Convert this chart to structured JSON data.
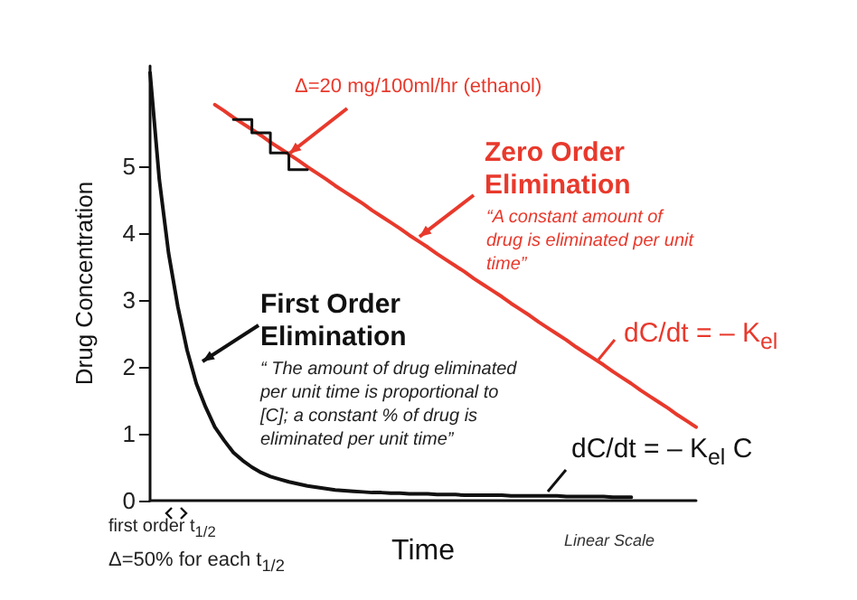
{
  "chart_data": {
    "type": "line",
    "xlabel": "Time",
    "ylabel": "Drug Concentration",
    "categories": [
      null,
      null,
      null,
      null,
      null,
      null,
      null,
      null,
      null,
      null,
      null,
      null,
      null,
      null,
      null,
      null,
      null,
      null,
      null,
      null,
      null,
      null,
      null,
      null,
      null,
      null,
      null,
      null,
      null,
      null,
      null,
      null,
      null,
      null,
      null,
      null,
      null,
      null,
      null,
      null,
      null,
      null,
      null,
      null,
      null,
      null,
      null,
      null,
      null,
      null,
      null,
      null,
      null,
      null,
      null,
      null,
      null,
      null,
      null,
      null
    ],
    "ylim": [
      0,
      6.5
    ],
    "yticks": [
      0,
      1,
      2,
      3,
      4,
      5
    ],
    "grid": false,
    "marker": "none",
    "line_style": "solid",
    "series": [
      {
        "color": "#111111",
        "values": [
          6.4,
          4.8,
          3.7,
          2.9,
          2.25,
          1.75,
          1.4,
          1.1,
          0.9,
          0.72,
          0.6,
          0.5,
          0.42,
          0.36,
          0.32,
          0.28,
          0.25,
          0.22,
          0.2,
          0.18,
          0.16,
          0.15,
          0.14,
          0.13,
          0.12,
          0.12,
          0.11,
          0.11,
          0.1,
          0.1,
          0.1,
          0.09,
          0.09,
          0.09,
          0.08,
          0.08,
          0.08,
          0.08,
          0.08,
          0.07,
          0.07,
          0.07,
          0.07,
          0.07,
          0.07,
          0.06,
          0.06,
          0.06,
          0.06,
          0.06,
          0.05,
          0.05,
          0.05,
          null,
          null,
          null,
          null,
          null,
          null,
          null
        ]
      },
      {
        "color": "#e8392c",
        "values": [
          null,
          null,
          null,
          null,
          null,
          null,
          null,
          5.92,
          5.83,
          5.73,
          5.64,
          5.55,
          5.46,
          5.36,
          5.27,
          5.18,
          5.09,
          4.99,
          4.9,
          4.81,
          4.71,
          4.62,
          4.53,
          4.44,
          4.34,
          4.25,
          4.16,
          4.07,
          3.97,
          3.88,
          3.79,
          3.69,
          3.6,
          3.51,
          3.42,
          3.32,
          3.23,
          3.14,
          3.05,
          2.95,
          2.86,
          2.77,
          2.67,
          2.58,
          2.49,
          2.4,
          2.3,
          2.21,
          2.12,
          2.03,
          1.93,
          1.84,
          1.75,
          1.65,
          1.56,
          1.47,
          1.38,
          1.28,
          1.19,
          1.1
        ]
      },
      {
        "type": "step",
        "color": "#111111",
        "values": [
          null,
          null,
          null,
          null,
          null,
          null,
          null,
          null,
          null,
          5.7,
          5.7,
          5.5,
          5.5,
          5.2,
          5.2,
          4.95,
          4.95,
          4.95,
          null,
          null,
          null,
          null,
          null,
          null,
          null,
          null,
          null,
          null,
          null,
          null,
          null,
          null,
          null,
          null,
          null,
          null,
          null,
          null,
          null,
          null,
          null,
          null,
          null,
          null,
          null,
          null,
          null,
          null,
          null,
          null,
          null,
          null,
          null,
          null,
          null,
          null,
          null,
          null,
          null,
          null
        ]
      }
    ],
    "annotations": [
      "Δ=20 mg/100ml/hr (ethanol)",
      "Zero Order Elimination",
      "“A constant amount of drug is eliminated per unit time”",
      "dC/dt = – K$_{el}$",
      "First Order Elimination",
      "“ The amount of drug eliminated per unit time is proportional to [C]; a constant % of drug is eliminated per unit time”",
      "dC/dt = – K$_{el}$ C",
      "first order t$_{1/2}$",
      "Δ=50% for each t$_{1/2}$",
      "Linear Scale"
    ]
  }
}
